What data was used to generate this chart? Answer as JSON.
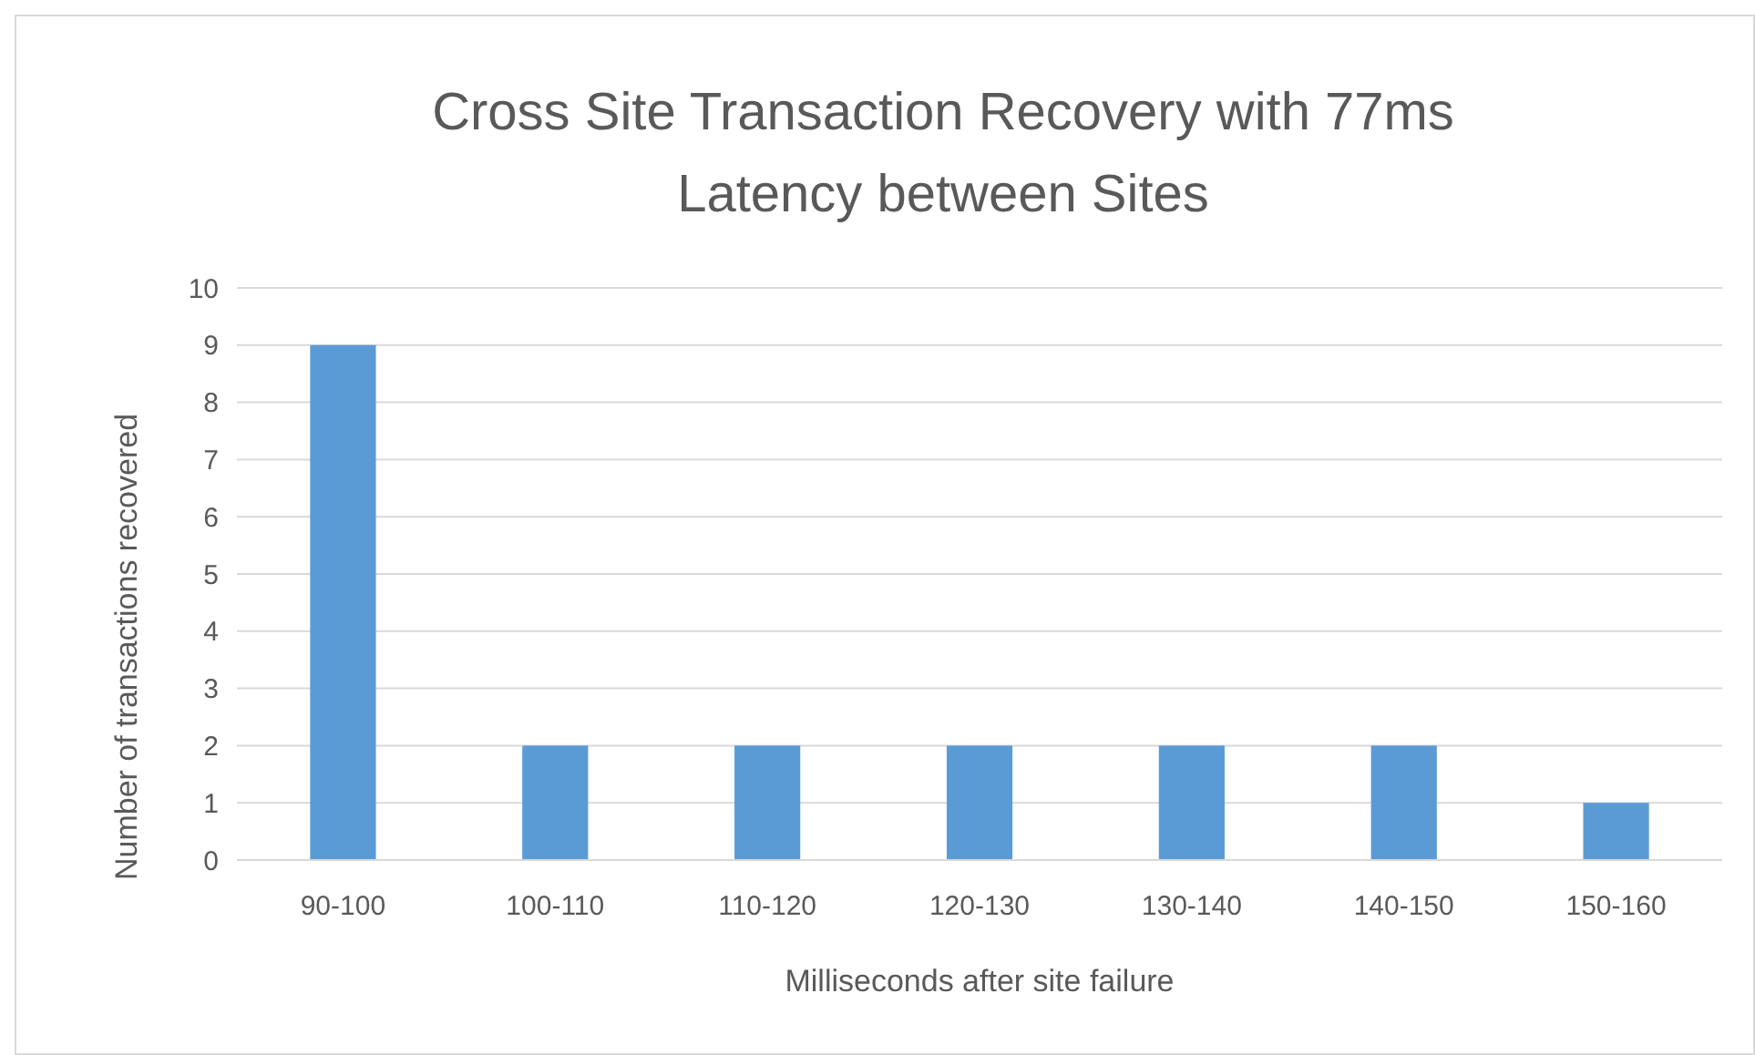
{
  "chart_data": {
    "type": "bar",
    "title": "Cross Site Transaction Recovery with 77ms Latency between Sites",
    "xlabel": "Milliseconds after site failure",
    "ylabel": "Number of transactions recovered",
    "categories": [
      "90-100",
      "100-110",
      "110-120",
      "120-130",
      "130-140",
      "140-150",
      "150-160"
    ],
    "values": [
      9,
      2,
      2,
      2,
      2,
      2,
      1
    ],
    "color": "#5b9bd5",
    "ylim": [
      0,
      10
    ],
    "yticks": [
      0,
      1,
      2,
      3,
      4,
      5,
      6,
      7,
      8,
      9,
      10
    ],
    "grid": "y"
  }
}
